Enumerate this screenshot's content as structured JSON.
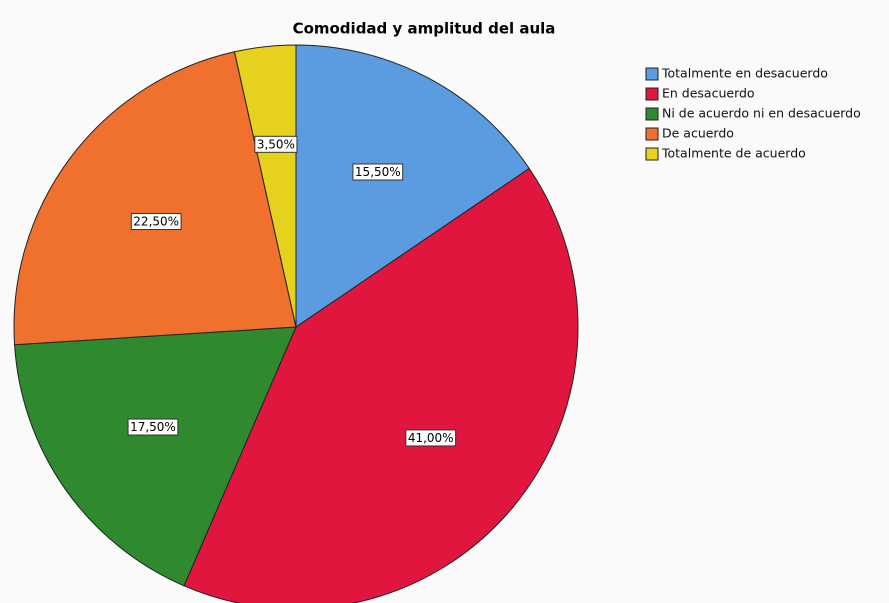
{
  "chart_data": {
    "type": "pie",
    "title": "Comodidad y amplitud del aula",
    "categories": [
      "Totalmente en desacuerdo",
      "En desacuerdo",
      "Ni de acuerdo ni en desacuerdo",
      "De acuerdo",
      "Totalmente de acuerdo"
    ],
    "values": [
      15.5,
      41.0,
      17.5,
      22.5,
      3.5
    ],
    "value_labels": [
      "15,50%",
      "41,00%",
      "17,50%",
      "22,50%",
      "3,50%"
    ],
    "colors": [
      "#5b9be0",
      "#e0163f",
      "#2f8a2f",
      "#f0702e",
      "#e6d21e"
    ],
    "legend": "right"
  }
}
